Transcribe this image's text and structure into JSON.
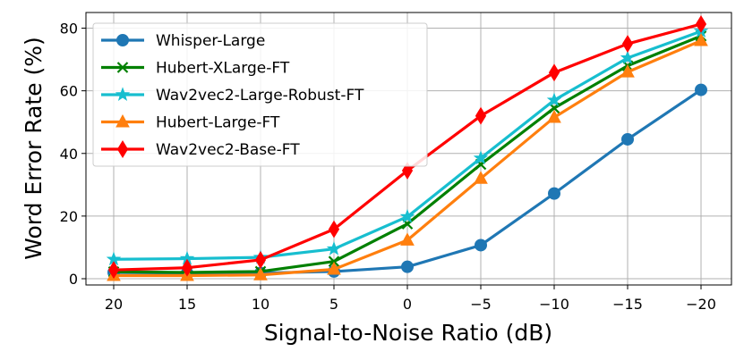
{
  "chart_data": {
    "type": "line",
    "title": "",
    "xlabel": "Signal-to-Noise Ratio (dB)",
    "ylabel": "Word Error Rate (%)",
    "categories": [
      "20",
      "15",
      "10",
      "5",
      "0",
      "−5",
      "−10",
      "−15",
      "−20"
    ],
    "ylim": [
      -2,
      85
    ],
    "yticks": [
      0,
      20,
      40,
      60,
      80
    ],
    "grid": true,
    "legend_position": "upper-left",
    "series": [
      {
        "name": "Whisper-Large",
        "color": "#1f77b4",
        "marker": "circle",
        "values": [
          2.0,
          1.8,
          1.8,
          2.3,
          3.8,
          10.7,
          27.2,
          44.5,
          60.3
        ]
      },
      {
        "name": "Hubert-XLarge-FT",
        "color": "#008000",
        "marker": "x",
        "values": [
          2.2,
          2.0,
          2.3,
          5.5,
          17.5,
          36.5,
          54.5,
          68.0,
          77.5
        ]
      },
      {
        "name": "Wav2vec2-Large-Robust-FT",
        "color": "#17becf",
        "marker": "star",
        "values": [
          6.2,
          6.4,
          6.8,
          9.5,
          19.8,
          38.5,
          57.0,
          70.5,
          79.0
        ]
      },
      {
        "name": "Hubert-Large-FT",
        "color": "#ff7f0e",
        "marker": "triangle",
        "values": [
          1.0,
          1.0,
          1.2,
          3.0,
          12.3,
          32.0,
          51.5,
          66.0,
          76.0
        ]
      },
      {
        "name": "Wav2vec2-Base-FT",
        "color": "#ff0000",
        "marker": "diamond",
        "values": [
          2.8,
          3.5,
          6.0,
          15.8,
          34.5,
          52.0,
          65.8,
          75.0,
          81.3
        ]
      }
    ]
  }
}
